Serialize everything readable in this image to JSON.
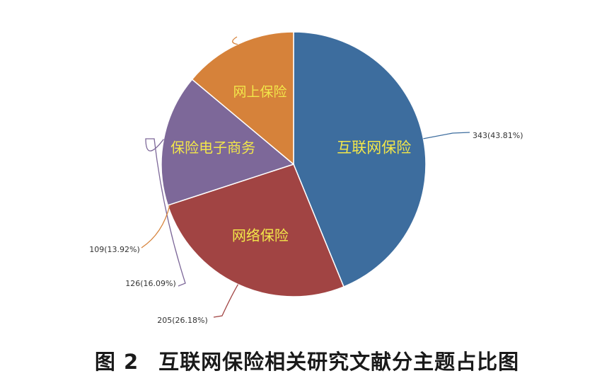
{
  "chart_data": {
    "type": "pie",
    "slices": [
      {
        "label": "互联网保险",
        "value": 343,
        "percent": "43.81%",
        "display": "343(43.81%)",
        "color": "#3d6d9e"
      },
      {
        "label": "网络保险",
        "value": 205,
        "percent": "26.18%",
        "display": "205(26.18%)",
        "color": "#a14443"
      },
      {
        "label": "保险电子商务",
        "value": 126,
        "percent": "16.09%",
        "display": "126(16.09%)",
        "color": "#7d6899"
      },
      {
        "label": "网上保险",
        "value": 109,
        "percent": "13.92%",
        "display": "109(13.92%)",
        "color": "#d6823a"
      }
    ],
    "inner_label_color": "#f2e64a",
    "title": ""
  },
  "caption": {
    "figure_number": "图 2",
    "text": "互联网保险相关研究文献分主题占比图"
  }
}
